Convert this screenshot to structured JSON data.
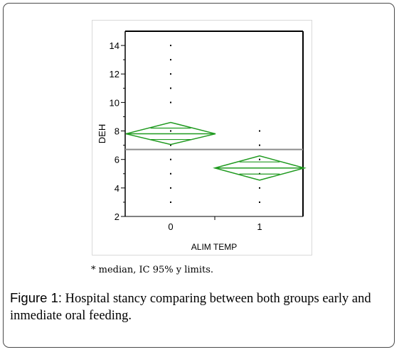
{
  "chart_data": {
    "type": "scatter",
    "title": "",
    "xlabel": "ALIM TEMP",
    "ylabel": "DEH",
    "categories": [
      "0",
      "1"
    ],
    "ylim": [
      2,
      15
    ],
    "y_ticks": [
      2,
      4,
      6,
      8,
      10,
      12,
      14
    ],
    "grid": false,
    "grand_mean": 6.7,
    "points": [
      {
        "x": "0",
        "y": 3
      },
      {
        "x": "0",
        "y": 4
      },
      {
        "x": "0",
        "y": 5
      },
      {
        "x": "0",
        "y": 6
      },
      {
        "x": "0",
        "y": 7
      },
      {
        "x": "0",
        "y": 8
      },
      {
        "x": "0",
        "y": 10
      },
      {
        "x": "0",
        "y": 11
      },
      {
        "x": "0",
        "y": 12
      },
      {
        "x": "0",
        "y": 13
      },
      {
        "x": "0",
        "y": 14
      },
      {
        "x": "1",
        "y": 3
      },
      {
        "x": "1",
        "y": 4
      },
      {
        "x": "1",
        "y": 5
      },
      {
        "x": "1",
        "y": 6
      },
      {
        "x": "1",
        "y": 7
      },
      {
        "x": "1",
        "y": 8
      }
    ],
    "means_diamonds": [
      {
        "group": "0",
        "mean": 7.8,
        "lower": 7.05,
        "upper": 8.6
      },
      {
        "group": "1",
        "mean": 5.4,
        "lower": 4.55,
        "upper": 6.25
      }
    ],
    "colors": {
      "diamond": "#1f9a1f",
      "grand_mean_line": "#8c8c8c",
      "points": "#000000",
      "axis": "#000000"
    }
  },
  "note": "* median, IC 95% y limits.",
  "caption": {
    "label": "Figure 1:",
    "text": " Hospital stancy comparing between both groups early and inmediate oral feeding."
  }
}
